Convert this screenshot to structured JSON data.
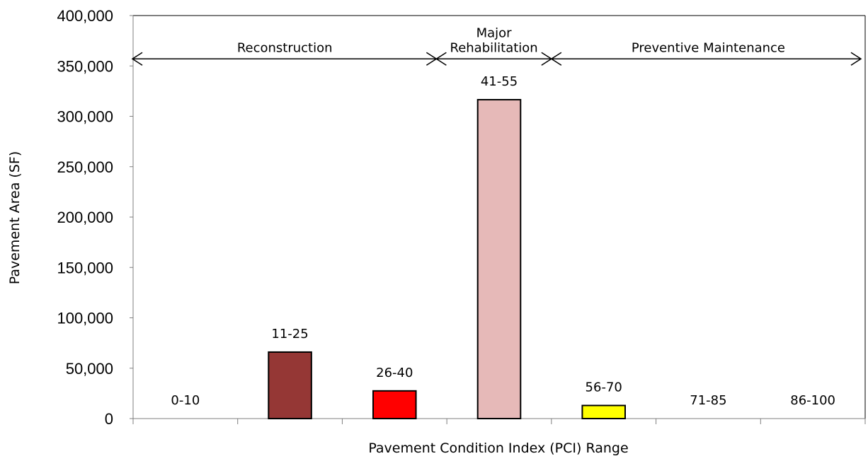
{
  "chart_data": {
    "type": "bar",
    "xlabel": "Pavement Condition Index (PCI) Range",
    "ylabel": "Pavement  Area (SF)",
    "ylim": [
      0,
      400000
    ],
    "yticks": [
      "0",
      "50,000",
      "100,000",
      "150,000",
      "200,000",
      "250,000",
      "300,000",
      "350,000",
      "400,000"
    ],
    "ytick_values": [
      0,
      50000,
      100000,
      150000,
      200000,
      250000,
      300000,
      350000,
      400000
    ],
    "grid": false,
    "categories": [
      "0-10",
      "11-25",
      "26-40",
      "41-55",
      "56-70",
      "71-85",
      "86-100"
    ],
    "values": [
      0,
      66000,
      27500,
      316500,
      13000,
      0,
      0
    ],
    "bar_colors": [
      "#ffffff",
      "#953735",
      "#ff0000",
      "#e6b9b8",
      "#ffff00",
      "#ffffff",
      "#ffffff"
    ],
    "zones": [
      {
        "lines": [
          "Reconstruction"
        ],
        "from": 0,
        "to": 2.9
      },
      {
        "lines": [
          "Major",
          "Rehabilitation"
        ],
        "from": 2.9,
        "to": 4.0
      },
      {
        "lines": [
          "Preventive Maintenance"
        ],
        "from": 4.0,
        "to": 7.0
      }
    ],
    "zone_arrow_value": 357000
  }
}
